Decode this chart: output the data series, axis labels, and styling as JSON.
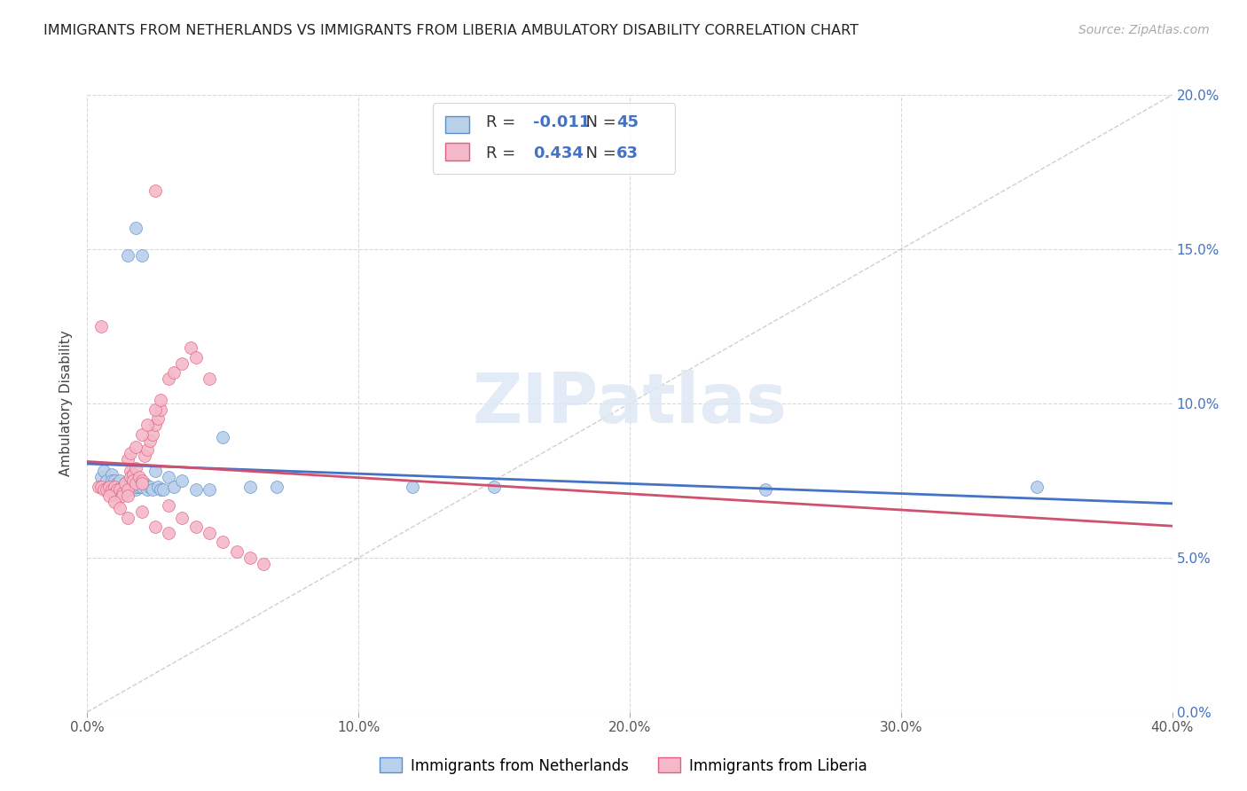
{
  "title": "IMMIGRANTS FROM NETHERLANDS VS IMMIGRANTS FROM LIBERIA AMBULATORY DISABILITY CORRELATION CHART",
  "source": "Source: ZipAtlas.com",
  "ylabel": "Ambulatory Disability",
  "legend_label1": "Immigrants from Netherlands",
  "legend_label2": "Immigrants from Liberia",
  "r1": -0.011,
  "n1": 45,
  "r2": 0.434,
  "n2": 63,
  "xlim": [
    0.0,
    0.4
  ],
  "ylim": [
    0.0,
    0.2
  ],
  "xticks": [
    0.0,
    0.1,
    0.2,
    0.3,
    0.4
  ],
  "yticks": [
    0.0,
    0.05,
    0.1,
    0.15,
    0.2
  ],
  "color_netherlands_fill": "#b8d0ea",
  "color_netherlands_edge": "#5b8fc9",
  "color_liberia_fill": "#f5b8c8",
  "color_liberia_edge": "#e06080",
  "color_trend_netherlands": "#4472c4",
  "color_trend_liberia": "#d05070",
  "grid_color": "#d0d0d0",
  "diag_color": "#bbbbbb",
  "accent_color": "#4472c4",
  "netherlands_x": [
    0.005,
    0.006,
    0.007,
    0.008,
    0.009,
    0.009,
    0.01,
    0.01,
    0.01,
    0.011,
    0.012,
    0.012,
    0.013,
    0.014,
    0.015,
    0.016,
    0.016,
    0.017,
    0.018,
    0.018,
    0.019,
    0.02,
    0.021,
    0.022,
    0.023,
    0.024,
    0.025,
    0.026,
    0.027,
    0.028,
    0.03,
    0.032,
    0.035,
    0.04,
    0.045,
    0.015,
    0.018,
    0.02,
    0.05,
    0.06,
    0.07,
    0.12,
    0.15,
    0.35,
    0.25
  ],
  "netherlands_y": [
    0.076,
    0.078,
    0.075,
    0.073,
    0.077,
    0.075,
    0.075,
    0.073,
    0.072,
    0.074,
    0.073,
    0.075,
    0.073,
    0.074,
    0.073,
    0.075,
    0.072,
    0.076,
    0.072,
    0.073,
    0.073,
    0.073,
    0.074,
    0.072,
    0.073,
    0.072,
    0.078,
    0.073,
    0.072,
    0.072,
    0.076,
    0.073,
    0.075,
    0.072,
    0.072,
    0.148,
    0.157,
    0.148,
    0.089,
    0.073,
    0.073,
    0.073,
    0.073,
    0.073,
    0.072
  ],
  "liberia_x": [
    0.004,
    0.005,
    0.006,
    0.007,
    0.008,
    0.009,
    0.009,
    0.01,
    0.01,
    0.011,
    0.011,
    0.012,
    0.013,
    0.013,
    0.014,
    0.015,
    0.015,
    0.016,
    0.016,
    0.017,
    0.017,
    0.018,
    0.018,
    0.019,
    0.02,
    0.02,
    0.021,
    0.022,
    0.023,
    0.024,
    0.025,
    0.026,
    0.027,
    0.015,
    0.016,
    0.018,
    0.02,
    0.022,
    0.025,
    0.027,
    0.03,
    0.032,
    0.035,
    0.038,
    0.04,
    0.045,
    0.015,
    0.02,
    0.025,
    0.03,
    0.005,
    0.008,
    0.01,
    0.012,
    0.025,
    0.03,
    0.035,
    0.04,
    0.045,
    0.05,
    0.055,
    0.06,
    0.065
  ],
  "liberia_y": [
    0.073,
    0.073,
    0.072,
    0.072,
    0.073,
    0.071,
    0.072,
    0.073,
    0.071,
    0.072,
    0.07,
    0.072,
    0.071,
    0.07,
    0.074,
    0.072,
    0.07,
    0.078,
    0.076,
    0.077,
    0.075,
    0.079,
    0.074,
    0.076,
    0.075,
    0.074,
    0.083,
    0.085,
    0.088,
    0.09,
    0.093,
    0.095,
    0.098,
    0.082,
    0.084,
    0.086,
    0.09,
    0.093,
    0.098,
    0.101,
    0.108,
    0.11,
    0.113,
    0.118,
    0.115,
    0.108,
    0.063,
    0.065,
    0.06,
    0.058,
    0.125,
    0.07,
    0.068,
    0.066,
    0.169,
    0.067,
    0.063,
    0.06,
    0.058,
    0.055,
    0.052,
    0.05,
    0.048
  ]
}
